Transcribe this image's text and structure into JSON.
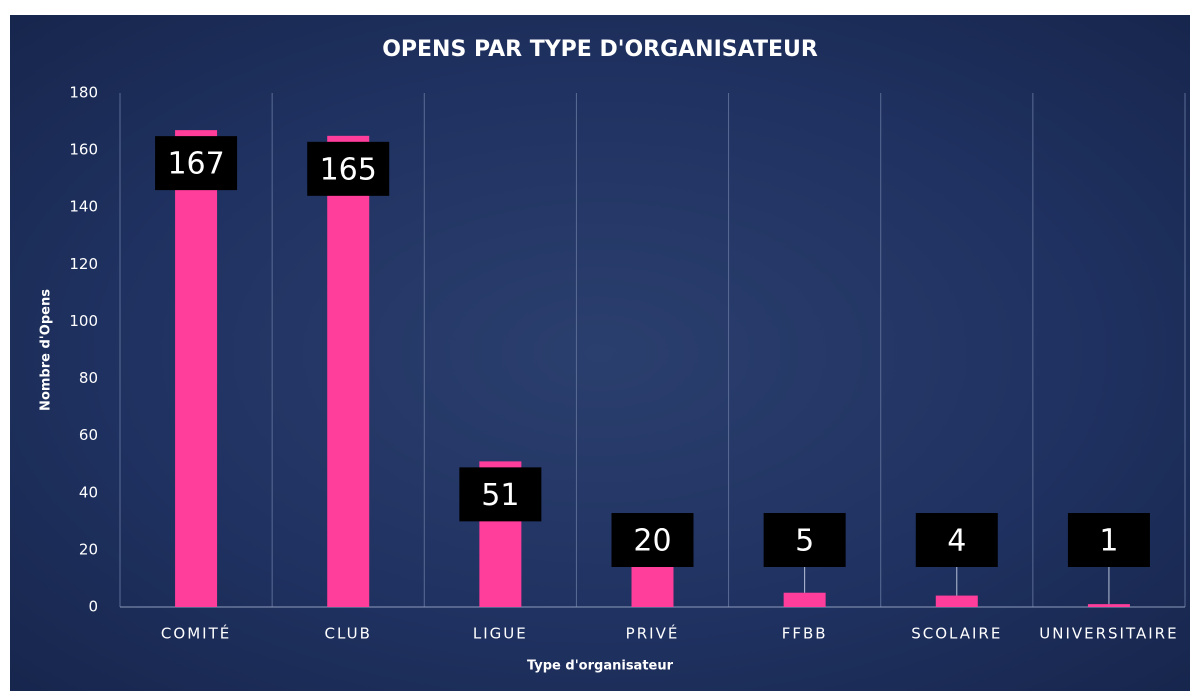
{
  "chart_data": {
    "type": "bar",
    "title": "OPENS PAR TYPE D'ORGANISATEUR",
    "x_label": "Type d'organisateur",
    "y_label": "Nombre d'Opens",
    "categories": [
      "COMITÉ",
      "CLUB",
      "LIGUE",
      "PRIVÉ",
      "FFBB",
      "SCOLAIRE",
      "UNIVERSITAIRE"
    ],
    "values": [
      167,
      165,
      51,
      20,
      5,
      4,
      1
    ],
    "color": "#ff3d9a",
    "ylim": [
      0,
      180
    ],
    "yticks": [
      0,
      20,
      40,
      60,
      80,
      100,
      120,
      140,
      160,
      180
    ],
    "grid": true
  }
}
